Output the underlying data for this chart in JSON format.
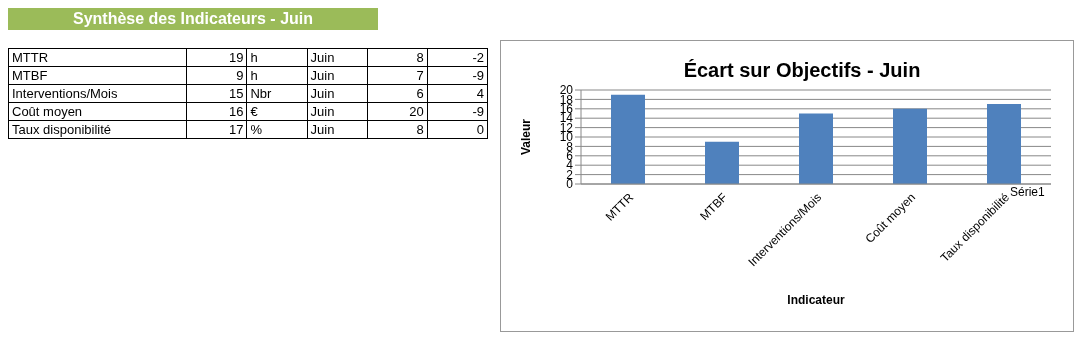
{
  "chart_data": {
    "type": "bar",
    "title": "Écart sur Objectifs - Juin",
    "xlabel": "Indicateur",
    "ylabel": "Valeur",
    "categories": [
      "MTTR",
      "MTBF",
      "Interventions/Mois",
      "Coût moyen",
      "Taux disponibilité"
    ],
    "series": [
      {
        "name": "Série1",
        "color": "#4f81bd",
        "values": [
          19,
          9,
          15,
          16,
          17
        ]
      }
    ],
    "ylim": [
      0,
      20
    ],
    "yticks": [
      0,
      2,
      4,
      6,
      8,
      10,
      12,
      14,
      16,
      18,
      20
    ],
    "grid": "y",
    "legend": "bottom right",
    "annotations": [
      "Synthèse des Indicateurs - Juin",
      "MTTR",
      "19",
      "h",
      "Juin",
      "8",
      "-2",
      "MTBF",
      "9",
      "h",
      "Juin",
      "7",
      "-9",
      "Interventions/Mois",
      "15",
      "Nbr",
      "Juin",
      "6",
      "4",
      "Coût moyen",
      "16",
      "€",
      "Juin",
      "20",
      "-9",
      "Taux disponibilité",
      "17",
      "%",
      "Juin",
      "8",
      "0"
    ]
  }
}
